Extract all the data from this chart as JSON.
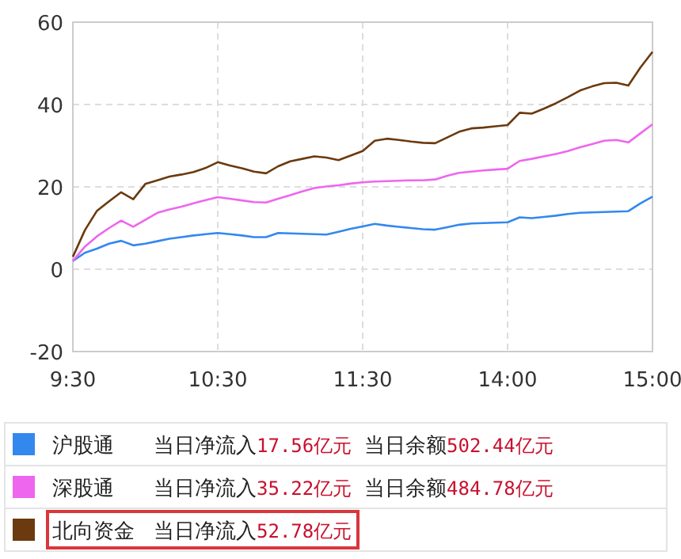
{
  "chart_data": {
    "type": "line",
    "ylim": [
      -20,
      60
    ],
    "yticks": [
      -20,
      0,
      20,
      40,
      60
    ],
    "categories": [
      "9:30",
      null,
      null,
      null,
      null,
      null,
      null,
      null,
      null,
      null,
      null,
      null,
      "10:30",
      null,
      null,
      null,
      null,
      null,
      null,
      null,
      null,
      null,
      null,
      null,
      "11:30",
      null,
      null,
      null,
      null,
      null,
      null,
      null,
      null,
      null,
      null,
      null,
      "14:00",
      null,
      null,
      null,
      null,
      null,
      null,
      null,
      null,
      null,
      null,
      null,
      "15:00"
    ],
    "grid": true,
    "legend": "bottom",
    "marker": "none",
    "line_style": "solid",
    "series": [
      {
        "name": "沪股通",
        "color": "#3388ee",
        "values": [
          2,
          4,
          5,
          6.2,
          6.9,
          5.8,
          6.2,
          6.8,
          7.4,
          7.8,
          8.2,
          8.5,
          8.8,
          8.5,
          8.2,
          7.8,
          7.8,
          8.8,
          8.7,
          8.6,
          8.5,
          8.4,
          9.1,
          9.8,
          10.4,
          11,
          10.6,
          10.3,
          10,
          9.7,
          9.6,
          10.2,
          10.8,
          11.1,
          11.2,
          11.3,
          11.4,
          12.6,
          12.4,
          12.7,
          13,
          13.4,
          13.7,
          13.8,
          13.9,
          14,
          14.1,
          16,
          17.6
        ]
      },
      {
        "name": "深股通",
        "color": "#ee66ee",
        "values": [
          2,
          5.5,
          8,
          10,
          11.8,
          10.3,
          12,
          13.7,
          14.5,
          15.2,
          16,
          16.8,
          17.5,
          17.1,
          16.7,
          16.3,
          16.2,
          17.1,
          18,
          18.9,
          19.7,
          20.1,
          20.4,
          20.8,
          21.1,
          21.3,
          21.4,
          21.5,
          21.6,
          21.6,
          21.8,
          22.7,
          23.4,
          23.7,
          24,
          24.2,
          24.4,
          26.3,
          26.8,
          27.4,
          28,
          28.7,
          29.6,
          30.4,
          31.2,
          31.4,
          30.8,
          33,
          35.2
        ]
      },
      {
        "name": "北向资金",
        "color": "#6b3a0e",
        "values": [
          3,
          9.5,
          14.2,
          16.5,
          18.7,
          17,
          20.7,
          21.6,
          22.5,
          23,
          23.6,
          24.6,
          26,
          25.2,
          24.5,
          23.7,
          23.3,
          25,
          26.2,
          26.8,
          27.4,
          27.1,
          26.5,
          27.6,
          28.7,
          31.2,
          31.7,
          31.4,
          31,
          30.7,
          30.6,
          32,
          33.4,
          34.2,
          34.4,
          34.7,
          35,
          38,
          37.8,
          39,
          40.3,
          41.8,
          43.4,
          44.4,
          45.2,
          45.3,
          44.6,
          49,
          52.8
        ]
      }
    ],
    "annotations": [
      "当日净流入17.56亿元",
      "当日余额502.44亿元",
      "当日净流入35.22亿元",
      "当日余额484.78亿元",
      "当日净流入52.78亿元"
    ]
  }
}
